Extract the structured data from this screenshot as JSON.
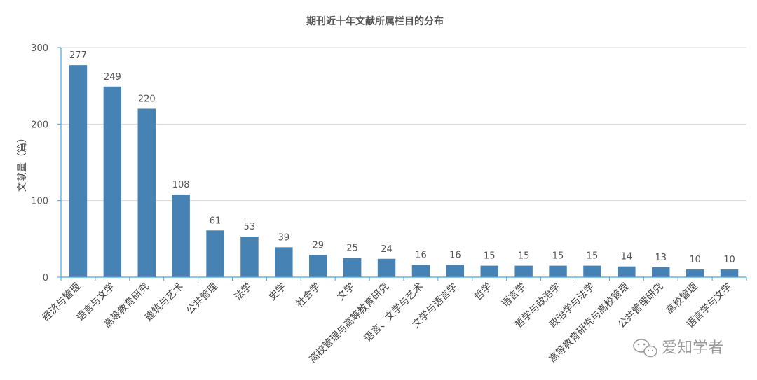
{
  "chart_data": {
    "type": "bar",
    "title": "期刊近十年文献所属栏目的分布",
    "xlabel": "",
    "ylabel": "文献量（篇）",
    "ylim": [
      0,
      300
    ],
    "yticks": [
      0,
      100,
      200,
      300
    ],
    "grid": true,
    "bar_color": "#4682b4",
    "categories": [
      "经济与管理",
      "语言与文学",
      "高等教育研究",
      "建筑与艺术",
      "公共管理",
      "法学",
      "史学",
      "社会学",
      "文学",
      "高校管理与高等教育研究",
      "语言、文学与艺术",
      "文学与语言学",
      "哲学",
      "语言学",
      "哲学与政治学",
      "政治学与法学",
      "高等教育研究与高校管理",
      "公共管理研究",
      "高校管理",
      "语言学与文学"
    ],
    "values": [
      277,
      249,
      220,
      108,
      61,
      53,
      39,
      29,
      25,
      24,
      16,
      16,
      15,
      15,
      15,
      15,
      14,
      13,
      10,
      10
    ]
  },
  "watermark": {
    "text": "爱知学者",
    "icon": "wechat-icon"
  }
}
